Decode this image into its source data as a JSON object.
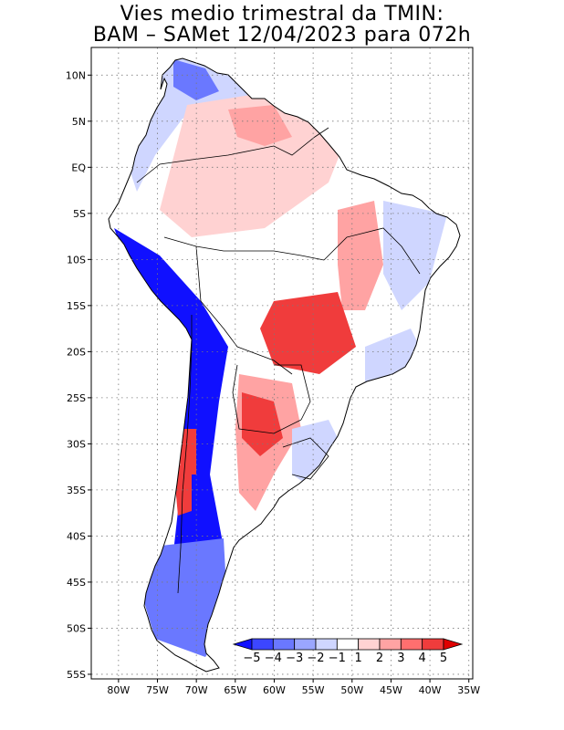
{
  "title": {
    "line1": "Vies medio trimestral da TMIN:",
    "line2": "BAM – SAMet 12/04/2023  para 072h"
  },
  "axes": {
    "lat_labels": [
      "10N",
      "5N",
      "EQ",
      "5S",
      "10S",
      "15S",
      "20S",
      "25S",
      "30S",
      "35S",
      "40S",
      "45S",
      "50S",
      "55S"
    ],
    "lon_labels": [
      "80W",
      "75W",
      "70W",
      "65W",
      "60W",
      "55W",
      "50W",
      "45W",
      "40W",
      "35W"
    ],
    "lat_range": [
      -55.5,
      13.0
    ],
    "lon_range": [
      -83.5,
      -34.5
    ],
    "grid": "dotted"
  },
  "colorbar": {
    "labels": [
      "−5",
      "−4",
      "−3",
      "−2",
      "−1",
      "1",
      "2",
      "3",
      "4",
      "5"
    ],
    "colors": [
      "#1010ff",
      "#3c46ff",
      "#6a78ff",
      "#9aa6ff",
      "#cfd6ff",
      "#ffffff",
      "#ffd2d2",
      "#ffa3a3",
      "#ff6f6f",
      "#f03c3c",
      "#e00000"
    ],
    "arrows": "both"
  },
  "colors": {
    "strong_negative": "#1010ff",
    "negative": "#6a78ff",
    "weak_negative": "#cfd6ff",
    "neutral": "#ffffff",
    "weak_positive": "#ffd2d2",
    "positive": "#ffa3a3",
    "strong_positive": "#f03c3c"
  }
}
